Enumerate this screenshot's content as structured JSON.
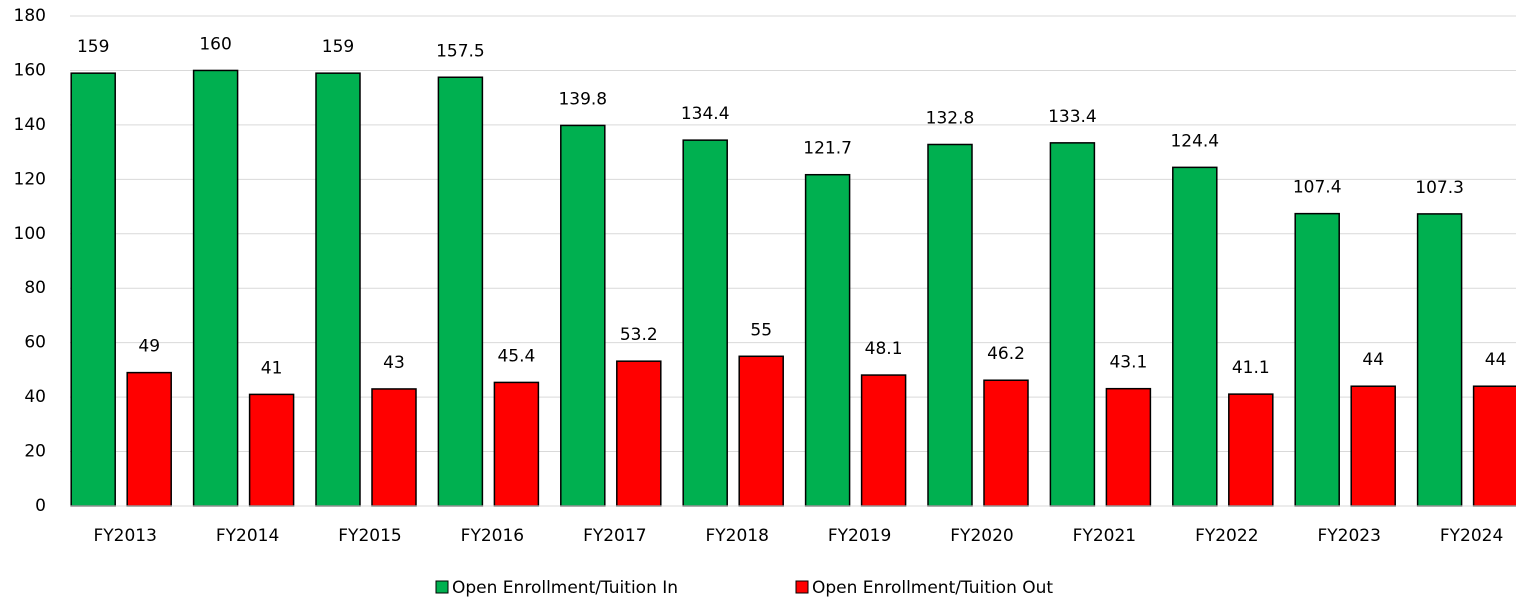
{
  "chart_data": {
    "type": "bar",
    "categories": [
      "FY2013",
      "FY2014",
      "FY2015",
      "FY2016",
      "FY2017",
      "FY2018",
      "FY2019",
      "FY2020",
      "FY2021",
      "FY2022",
      "FY2023",
      "FY2024"
    ],
    "series": [
      {
        "name": "Open Enrollment/Tuition In",
        "color": "#00b050",
        "values": [
          159,
          160,
          159,
          157.5,
          139.8,
          134.4,
          121.7,
          132.8,
          133.4,
          124.4,
          107.4,
          107.3
        ]
      },
      {
        "name": "Open Enrollment/Tuition Out",
        "color": "#ff0000",
        "values": [
          49,
          41,
          43,
          45.4,
          53.2,
          55,
          48.1,
          46.2,
          43.1,
          41.1,
          44,
          44
        ]
      }
    ],
    "ylim": [
      0,
      180
    ],
    "yticks": [
      0,
      20,
      40,
      60,
      80,
      100,
      120,
      140,
      160,
      180
    ],
    "grid": true,
    "legend": "bottom"
  }
}
